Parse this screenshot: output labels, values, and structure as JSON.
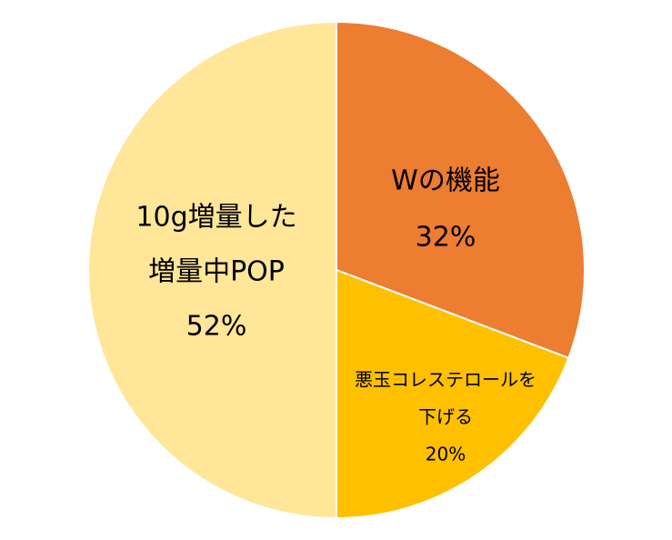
{
  "chart_data": {
    "type": "pie",
    "categories": [
      [
        "Wの機能"
      ],
      [
        "悪玉コレステロールを",
        "下げる"
      ],
      [
        "10g増量した",
        "増量中POP"
      ]
    ],
    "values": [
      32,
      20,
      52
    ],
    "value_labels": [
      "32%",
      "20%",
      "52%"
    ],
    "colors": [
      "#ed7d31",
      "#ffc000",
      "#ffe699"
    ]
  }
}
